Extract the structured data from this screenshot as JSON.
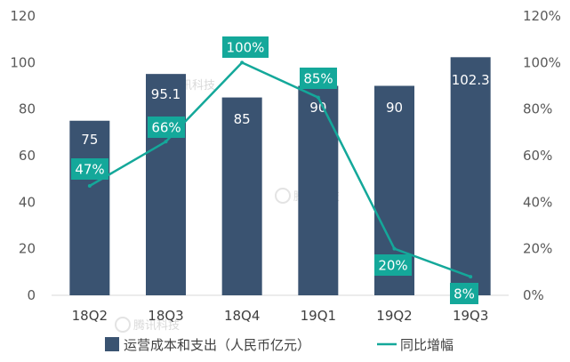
{
  "chart_data": {
    "type": "bar",
    "categories": [
      "18Q2",
      "18Q3",
      "18Q4",
      "19Q1",
      "19Q2",
      "19Q3"
    ],
    "series": [
      {
        "name": "运营成本和支出（人民币亿元）",
        "type": "bar",
        "axis": "left",
        "values": [
          75,
          95.1,
          85,
          90,
          90,
          102.3
        ],
        "labels": [
          "75",
          "95.1",
          "85",
          "90",
          "90",
          "102.3"
        ],
        "color": "#3a5371"
      },
      {
        "name": "同比增幅",
        "type": "line",
        "axis": "right",
        "values": [
          47,
          66,
          100,
          85,
          20,
          8
        ],
        "labels": [
          "47%",
          "66%",
          "100%",
          "85%",
          "20%",
          "8%"
        ],
        "color": "#14a89a"
      }
    ],
    "left_axis": {
      "ylim": [
        0,
        120
      ],
      "ticks": [
        "0",
        "20",
        "40",
        "60",
        "80",
        "100",
        "120"
      ]
    },
    "right_axis": {
      "ylim": [
        0,
        120
      ],
      "ticks": [
        "0%",
        "20%",
        "40%",
        "60%",
        "80%",
        "100%",
        "120%"
      ]
    },
    "grid": false,
    "legend_position": "bottom",
    "watermark": "腾讯科技",
    "title": "",
    "xlabel": "",
    "ylabel": ""
  }
}
